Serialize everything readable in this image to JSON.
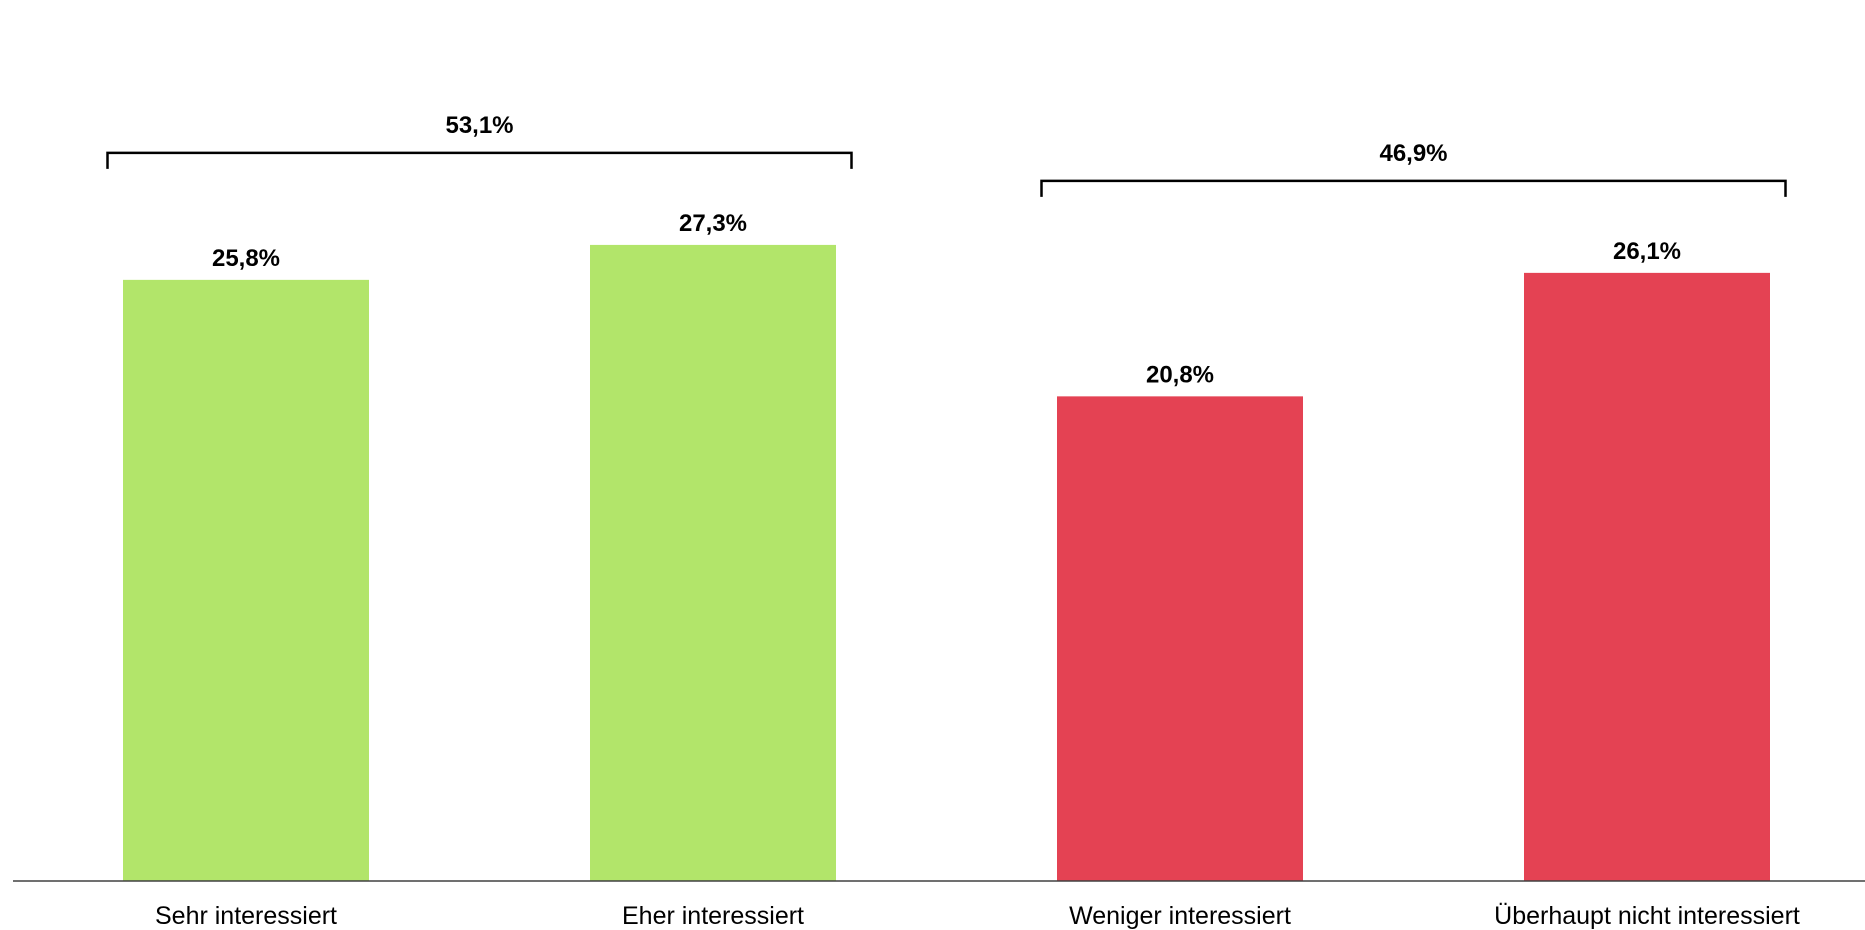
{
  "chart_data": {
    "type": "bar",
    "title": "",
    "xlabel": "",
    "ylabel": "",
    "ylim": [
      0,
      30
    ],
    "grid": false,
    "categories": [
      "Sehr interessiert",
      "Eher interessiert",
      "Weniger interessiert",
      "Überhaupt nicht interessiert"
    ],
    "values": [
      25.8,
      27.3,
      20.8,
      26.1
    ],
    "value_labels": [
      "25,8%",
      "27,3%",
      "20,8%",
      "26,1%"
    ],
    "colors": [
      "#b2e56a",
      "#b2e56a",
      "#e44253",
      "#e44253"
    ],
    "axis_color": "#404040",
    "groups": [
      {
        "label": "53,1%",
        "value": 53.1,
        "start": 0,
        "end": 1
      },
      {
        "label": "46,9%",
        "value": 46.9,
        "start": 2,
        "end": 3
      }
    ]
  }
}
